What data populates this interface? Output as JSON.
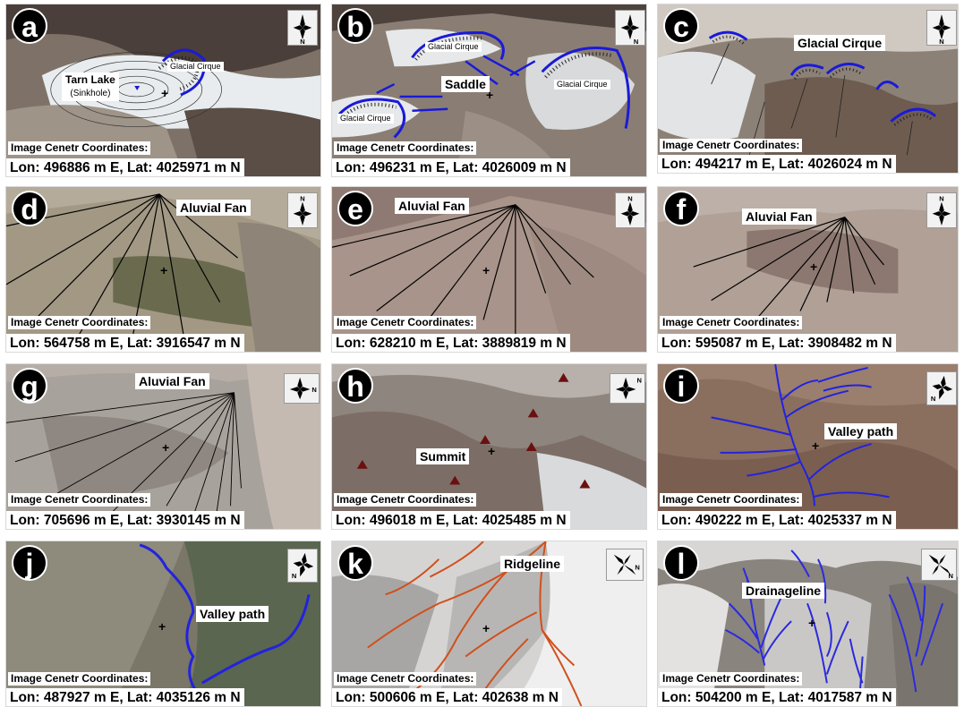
{
  "panels": [
    {
      "id": "a",
      "letter": "a",
      "coord_label": "Image Cenetr Coordinates:",
      "coords": "Lon: 496886 m E, Lat: 4025971 m N",
      "compass_n": "N",
      "feature": "Tarn Lake",
      "feature_sub": "(Sinkhole)",
      "small_labels": [
        "Glacial Cirque"
      ],
      "feature_color": "#1a1ad8",
      "bg": "#7e7268"
    },
    {
      "id": "b",
      "letter": "b",
      "coord_label": "Image Cenetr Coordinates:",
      "coords": "Lon: 496231 m E, Lat: 4026009 m N",
      "compass_n": "N",
      "feature": "Saddle",
      "small_labels": [
        "Glacial Cirque",
        "Glacial Cirque",
        "Glacial Cirque"
      ],
      "feature_color": "#1a1ad8",
      "bg": "#8a7e74"
    },
    {
      "id": "c",
      "letter": "c",
      "coord_label": "Image Cenetr Coordinates:",
      "coords": "Lon: 494217 m E, Lat: 4026024 m N",
      "compass_n": "N",
      "feature": "Glacial Cirque",
      "feature_color": "#1a1ad8",
      "bg": "#8c8177"
    },
    {
      "id": "d",
      "letter": "d",
      "coord_label": "Image Cenetr Coordinates:",
      "coords": "Lon: 564758 m E, Lat: 3916547 m N",
      "compass_n": "N",
      "feature": "Aluvial Fan",
      "feature_color": "#000000",
      "bg": "#a29884"
    },
    {
      "id": "e",
      "letter": "e",
      "coord_label": "Image Cenetr Coordinates:",
      "coords": "Lon: 628210 m E, Lat: 3889819 m N",
      "compass_n": "N",
      "feature": "Aluvial Fan",
      "feature_color": "#000000",
      "bg": "#a8948a"
    },
    {
      "id": "f",
      "letter": "f",
      "coord_label": "Image Cenetr Coordinates:",
      "coords": "Lon: 595087 m E, Lat: 3908482 m N",
      "compass_n": "N",
      "feature": "Aluvial Fan",
      "feature_color": "#000000",
      "bg": "#b0a096"
    },
    {
      "id": "g",
      "letter": "g",
      "coord_label": "Image Cenetr Coordinates:",
      "coords": "Lon: 705696 m E, Lat: 3930145 m N",
      "compass_n": "N",
      "feature": "Aluvial Fan",
      "feature_color": "#000000",
      "bg": "#a8a29c"
    },
    {
      "id": "h",
      "letter": "h",
      "coord_label": "Image Cenetr Coordinates:",
      "coords": "Lon: 496018 m E, Lat: 4025485 m N",
      "compass_n": "N",
      "feature": "Summit",
      "feature_color": "#6a1010",
      "bg": "#8e857e"
    },
    {
      "id": "i",
      "letter": "i",
      "coord_label": "Image Cenetr Coordinates:",
      "coords": "Lon: 490222 m E, Lat: 4025337 m N",
      "compass_n": "N",
      "feature": "Valley path",
      "feature_color": "#2222e0",
      "bg": "#8a6e5e"
    },
    {
      "id": "j",
      "letter": "j",
      "coord_label": "Image Cenetr Coordinates:",
      "coords": "Lon: 487927 m E, Lat: 4035126 m N",
      "compass_n": "N",
      "feature": "Valley path",
      "feature_color": "#2222e0",
      "bg": "#7a7668"
    },
    {
      "id": "k",
      "letter": "k",
      "coord_label": "Image Cenetr Coordinates:",
      "coords": "Lon: 500606 m E, Lat: 402638 m N",
      "compass_n": "N",
      "feature": "Ridgeline",
      "feature_color": "#d0501c",
      "bg": "#d6d4d2"
    },
    {
      "id": "l",
      "letter": "l",
      "coord_label": "Image Cenetr Coordinates:",
      "coords": "Lon: 504200 m E, Lat: 4017587 m N",
      "compass_n": "N",
      "feature": "Drainageline",
      "feature_color": "#2a2ae0",
      "bg": "#8a847e"
    }
  ]
}
